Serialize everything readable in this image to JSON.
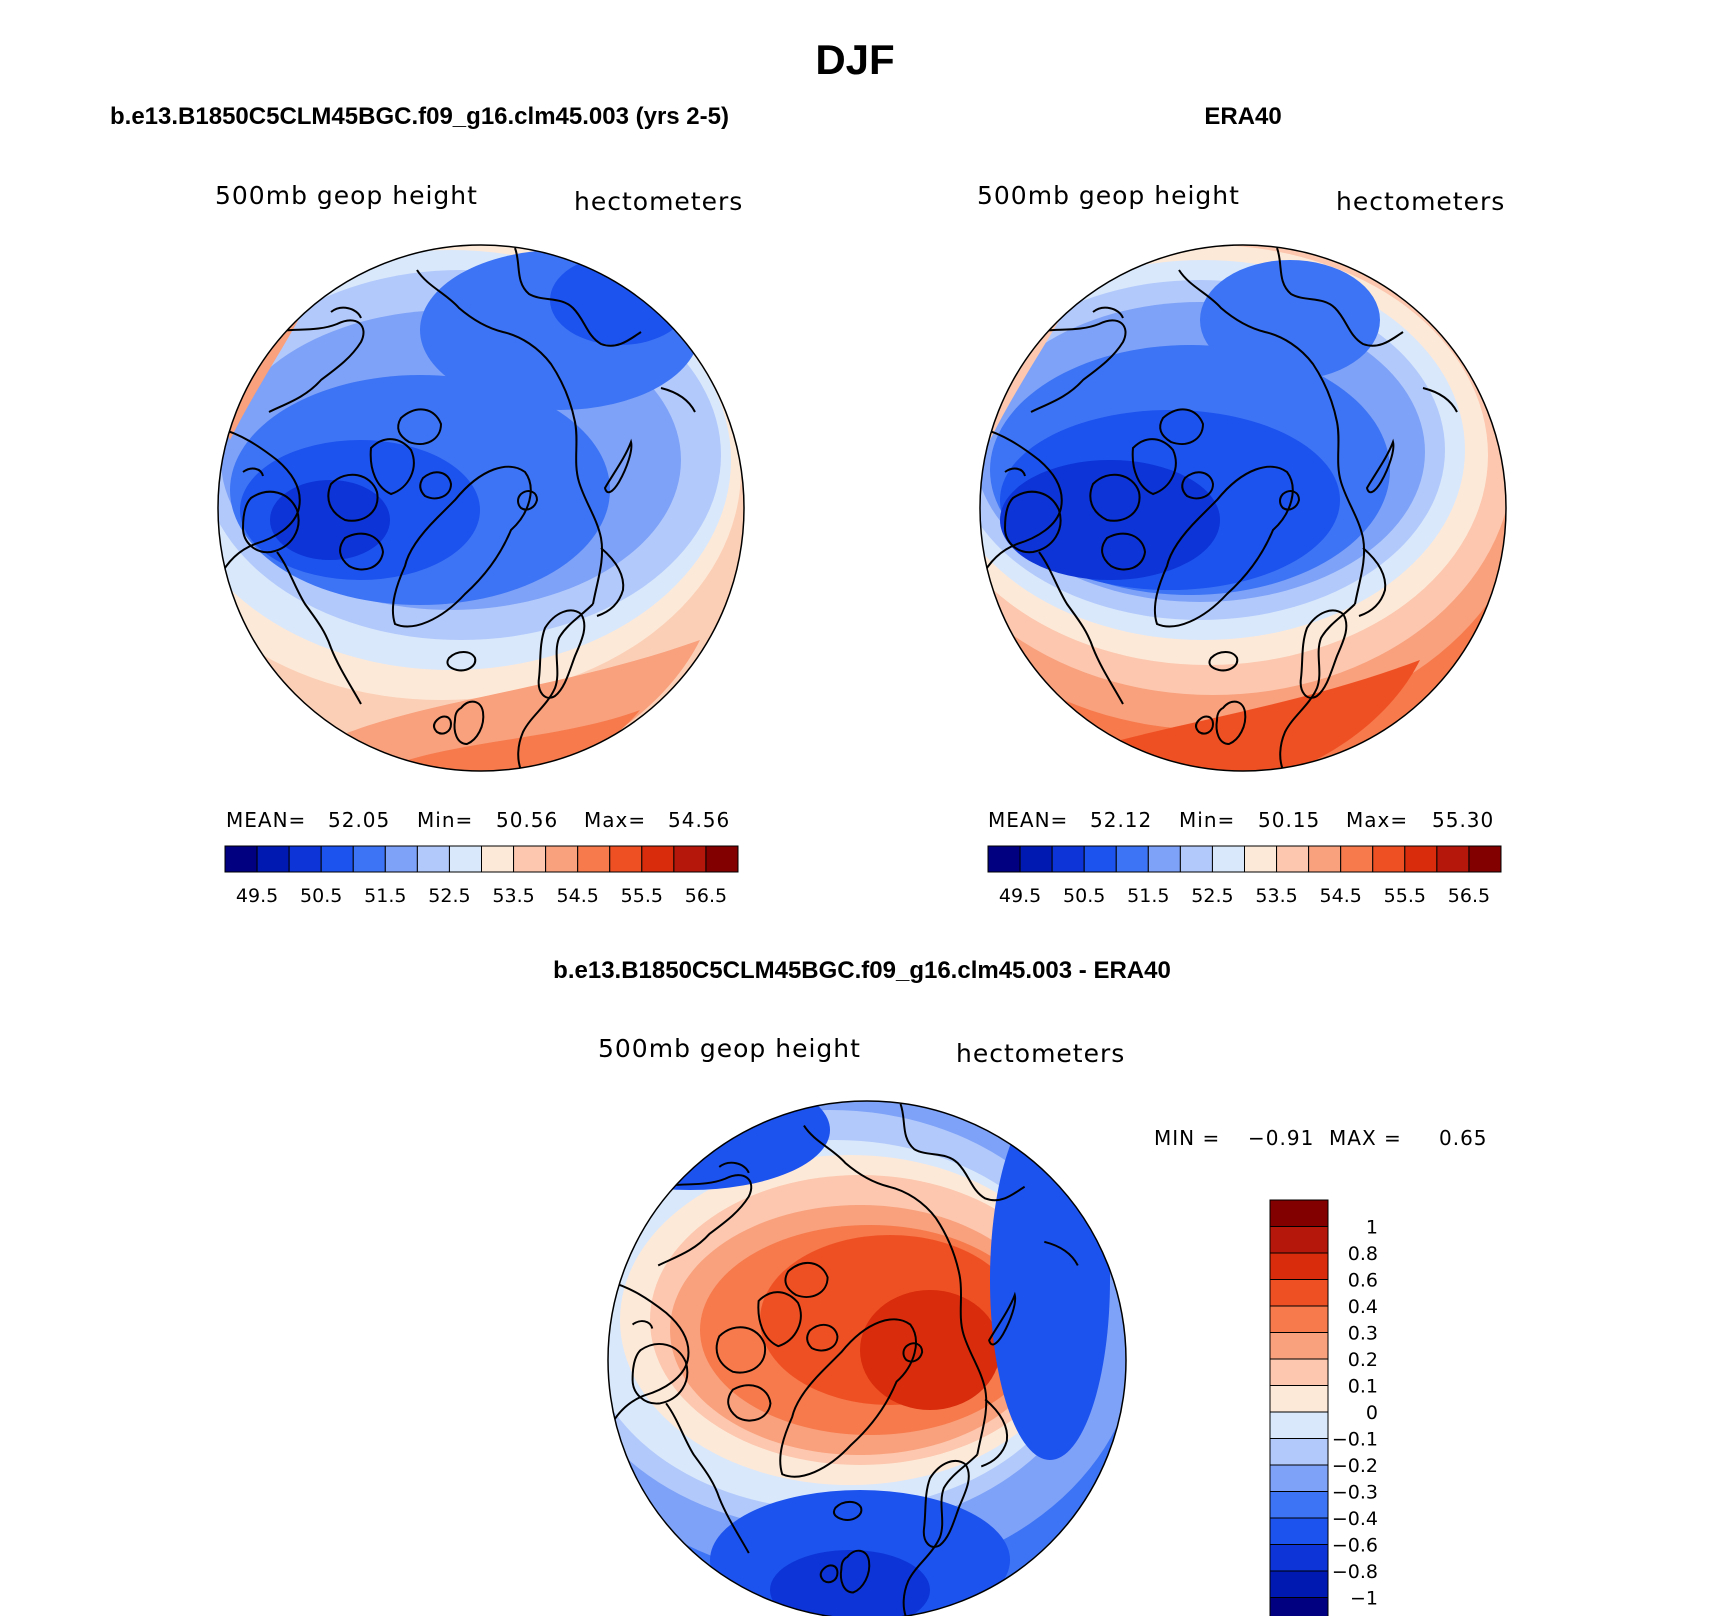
{
  "figure": {
    "title": "DJF"
  },
  "panels": {
    "model": {
      "title": "b.e13.B1850C5CLM45BGC.f09_g16.clm45.003 (yrs 2-5)",
      "variable": "500mb geop height",
      "units": "hectometers",
      "stats": {
        "mean_label": "MEAN=",
        "mean": "52.05",
        "min_label": "Min=",
        "min": "50.56",
        "max_label": "Max=",
        "max": "54.56"
      }
    },
    "obs": {
      "title": "ERA40",
      "variable": "500mb geop height",
      "units": "hectometers",
      "stats": {
        "mean_label": "MEAN=",
        "mean": "52.12",
        "min_label": "Min=",
        "min": "50.15",
        "max_label": "Max=",
        "max": "55.30"
      }
    },
    "diff": {
      "title": "b.e13.B1850C5CLM45BGC.f09_g16.clm45.003 - ERA40",
      "variable": "500mb geop height",
      "units": "hectometers",
      "stats": {
        "min_label": "MIN =",
        "min": "−0.91",
        "max_label": "MAX =",
        "max": "0.65"
      }
    }
  },
  "colorbars": {
    "abs": {
      "labels": [
        "49.5",
        "50.5",
        "51.5",
        "52.5",
        "53.5",
        "54.5",
        "55.5",
        "56.5"
      ],
      "colors": [
        "#000080",
        "#0019b0",
        "#0c34d6",
        "#1c52ee",
        "#3d74f5",
        "#7ea2f7",
        "#b2c9fb",
        "#d9e8fb",
        "#fde9d8",
        "#fcc7ae",
        "#f9a07c",
        "#f67a4c",
        "#ef5023",
        "#d82c0c",
        "#b5180a",
        "#820000"
      ]
    },
    "diff": {
      "labels": [
        "1",
        "0.8",
        "0.6",
        "0.4",
        "0.3",
        "0.2",
        "0.1",
        "0",
        "−0.1",
        "−0.2",
        "−0.3",
        "−0.4",
        "−0.6",
        "−0.8",
        "−1"
      ],
      "colors": [
        "#820000",
        "#b5180a",
        "#d82c0c",
        "#ef5023",
        "#f67a4c",
        "#f9a07c",
        "#fcc7ae",
        "#fde9d8",
        "#d9e8fb",
        "#b2c9fb",
        "#7ea2f7",
        "#3d74f5",
        "#1c52ee",
        "#0c34d6",
        "#0019b0",
        "#000080"
      ]
    }
  }
}
